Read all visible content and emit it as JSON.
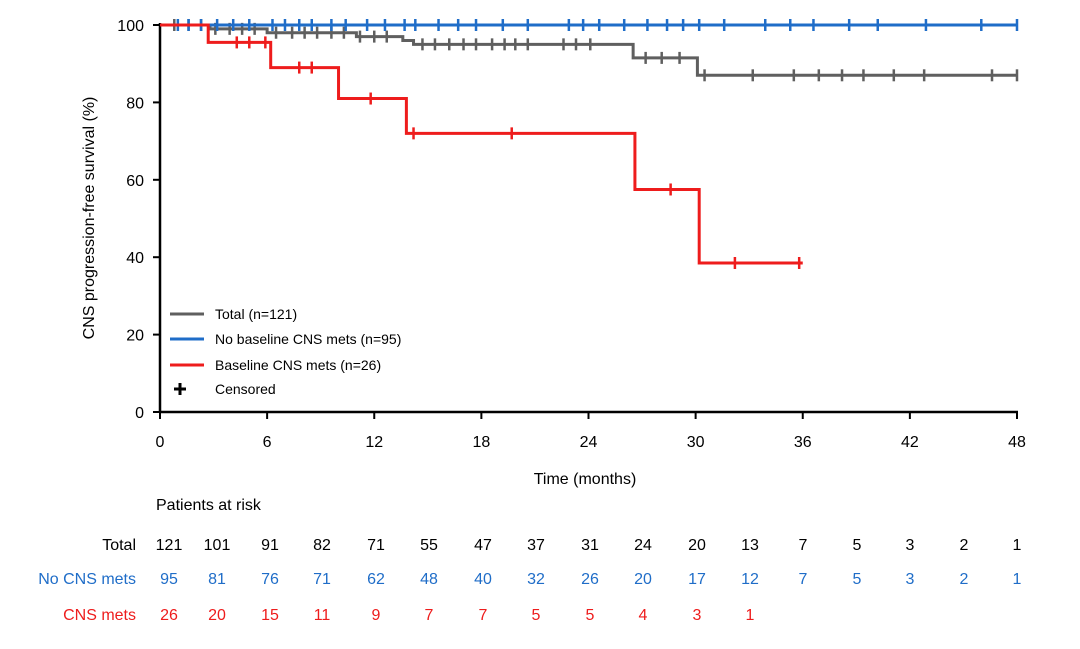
{
  "chart_data": {
    "type": "line",
    "subtype": "kaplan-meier",
    "ylabel": "CNS progression-free survival (%)",
    "xlabel": "Time (months)",
    "xlim": [
      0,
      48
    ],
    "ylim": [
      0,
      100
    ],
    "x_ticks": [
      "0",
      "6",
      "12",
      "18",
      "24",
      "30",
      "36",
      "42",
      "48"
    ],
    "y_ticks": [
      "0",
      "20",
      "40",
      "60",
      "80",
      "100"
    ],
    "legend": {
      "position": "bottom-left",
      "entries": [
        "Total (n=121)",
        "No baseline CNS mets (n=95)",
        "Baseline CNS mets (n=26)",
        "Censored"
      ]
    },
    "colors": {
      "total": "#5f5f5f",
      "no_cns": "#1f6dc8",
      "cns": "#ee1c1c",
      "censor": "#000000"
    },
    "series": [
      {
        "key": "total",
        "name": "Total (n=121)",
        "color": "#5f5f5f",
        "steps": [
          [
            0,
            100
          ],
          [
            2.8,
            99
          ],
          [
            6,
            98
          ],
          [
            11,
            97
          ],
          [
            13.6,
            96
          ],
          [
            14.2,
            95
          ],
          [
            26.5,
            91.5
          ],
          [
            30.1,
            87
          ],
          [
            48,
            87
          ]
        ],
        "censored": [
          0.8,
          1.6,
          2.3,
          3.1,
          3.9,
          4.6,
          5.3,
          6.5,
          7.4,
          8.1,
          8.8,
          9.6,
          10.3,
          11.2,
          12,
          12.7,
          14.7,
          15.4,
          16.2,
          17,
          17.7,
          18.6,
          19.3,
          19.9,
          20.6,
          22.6,
          23.3,
          24.1,
          27.2,
          28.1,
          29.1,
          30.5,
          33.2,
          35.5,
          36.9,
          38.2,
          39.4,
          41.1,
          42.8,
          46.6,
          48
        ]
      },
      {
        "key": "no_cns",
        "name": "No baseline CNS mets (n=95)",
        "color": "#1f6dc8",
        "steps": [
          [
            0,
            100
          ],
          [
            48,
            100
          ]
        ],
        "censored": [
          1,
          1.6,
          2.3,
          3.2,
          4.1,
          5,
          6.3,
          7,
          7.8,
          8.5,
          9.6,
          10.4,
          11.6,
          12.6,
          13.7,
          14.3,
          15.6,
          16.7,
          17.7,
          19.2,
          20.6,
          22.9,
          23.7,
          24.6,
          26,
          27.3,
          28.4,
          29.3,
          30.2,
          31.6,
          33.9,
          35.3,
          36.6,
          38.6,
          40.2,
          42.9,
          46,
          48
        ]
      },
      {
        "key": "cns",
        "name": "Baseline CNS mets (n=26)",
        "color": "#ee1c1c",
        "steps": [
          [
            0,
            100
          ],
          [
            2.7,
            95.5
          ],
          [
            6.2,
            89
          ],
          [
            10,
            81
          ],
          [
            13.8,
            72
          ],
          [
            26.6,
            57.5
          ],
          [
            30.2,
            38.5
          ],
          [
            36,
            38.5
          ]
        ],
        "censored": [
          4.3,
          5,
          5.9,
          7.8,
          8.5,
          11.8,
          14.2,
          19.7,
          28.6,
          32.2,
          35.8
        ]
      }
    ],
    "risk_table": {
      "title": "Patients at risk",
      "timepoints": [
        0,
        3,
        6,
        9,
        12,
        15,
        18,
        21,
        24,
        27,
        30,
        33,
        36,
        39,
        42,
        45,
        48
      ],
      "rows": [
        {
          "label": "Total",
          "color": "#000000",
          "values": [
            "121",
            "101",
            "91",
            "82",
            "71",
            "55",
            "47",
            "37",
            "31",
            "24",
            "20",
            "13",
            "7",
            "5",
            "3",
            "2",
            "1"
          ]
        },
        {
          "label": "No CNS mets",
          "color": "#1f6dc8",
          "values": [
            "95",
            "81",
            "76",
            "71",
            "62",
            "48",
            "40",
            "32",
            "26",
            "20",
            "17",
            "12",
            "7",
            "5",
            "3",
            "2",
            "1"
          ]
        },
        {
          "label": "CNS mets",
          "color": "#ee1c1c",
          "values": [
            "26",
            "20",
            "15",
            "11",
            "9",
            "7",
            "7",
            "5",
            "5",
            "4",
            "3",
            "1"
          ]
        }
      ]
    }
  }
}
